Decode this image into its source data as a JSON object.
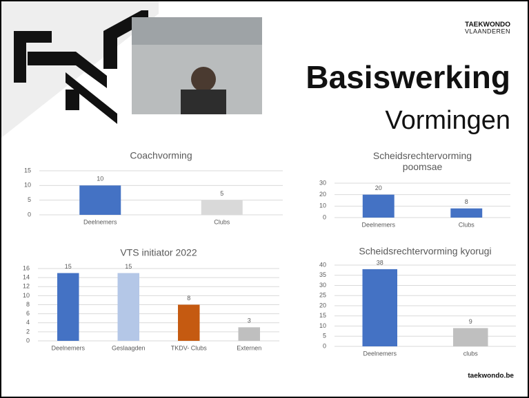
{
  "slide": {
    "title": "Basiswerking",
    "subtitle": "Vormingen",
    "logo_line1": "TAEKWONDO",
    "logo_line2": "VLAANDEREN",
    "footer": "taekwondo.be"
  },
  "chart_data": [
    {
      "type": "bar",
      "title": "Coachvorming",
      "categories": [
        "Deelnemers",
        "Clubs"
      ],
      "values": [
        10,
        5
      ],
      "colors": [
        "#4472c4",
        "#d9d9d9"
      ],
      "ylim": [
        0,
        15
      ],
      "yticks": [
        0,
        5,
        10,
        15
      ],
      "grid": true
    },
    {
      "type": "bar",
      "title": "Scheidsrechtervorming poomsae",
      "categories": [
        "Deelnemers",
        "Clubs"
      ],
      "values": [
        20,
        8
      ],
      "colors": [
        "#4472c4",
        "#4472c4"
      ],
      "ylim": [
        0,
        30
      ],
      "yticks": [
        0,
        10,
        20,
        30
      ],
      "grid": true
    },
    {
      "type": "bar",
      "title": "VTS initiator 2022",
      "categories": [
        "Deelnemers",
        "Geslaagden",
        "TKDV- Clubs",
        "Externen"
      ],
      "values": [
        15,
        15,
        8,
        3
      ],
      "colors": [
        "#4472c4",
        "#b4c7e7",
        "#c55a11",
        "#bfbfbf"
      ],
      "ylim": [
        0,
        16
      ],
      "yticks": [
        0,
        2,
        4,
        6,
        8,
        10,
        12,
        14,
        16
      ],
      "grid": true
    },
    {
      "type": "bar",
      "title": "Scheidsrechtervorming kyorugi",
      "categories": [
        "Deelnemers",
        "clubs"
      ],
      "values": [
        38,
        9
      ],
      "colors": [
        "#4472c4",
        "#bfbfbf"
      ],
      "ylim": [
        0,
        40
      ],
      "yticks": [
        0,
        5,
        10,
        15,
        20,
        25,
        30,
        35,
        40
      ],
      "grid": true
    }
  ]
}
